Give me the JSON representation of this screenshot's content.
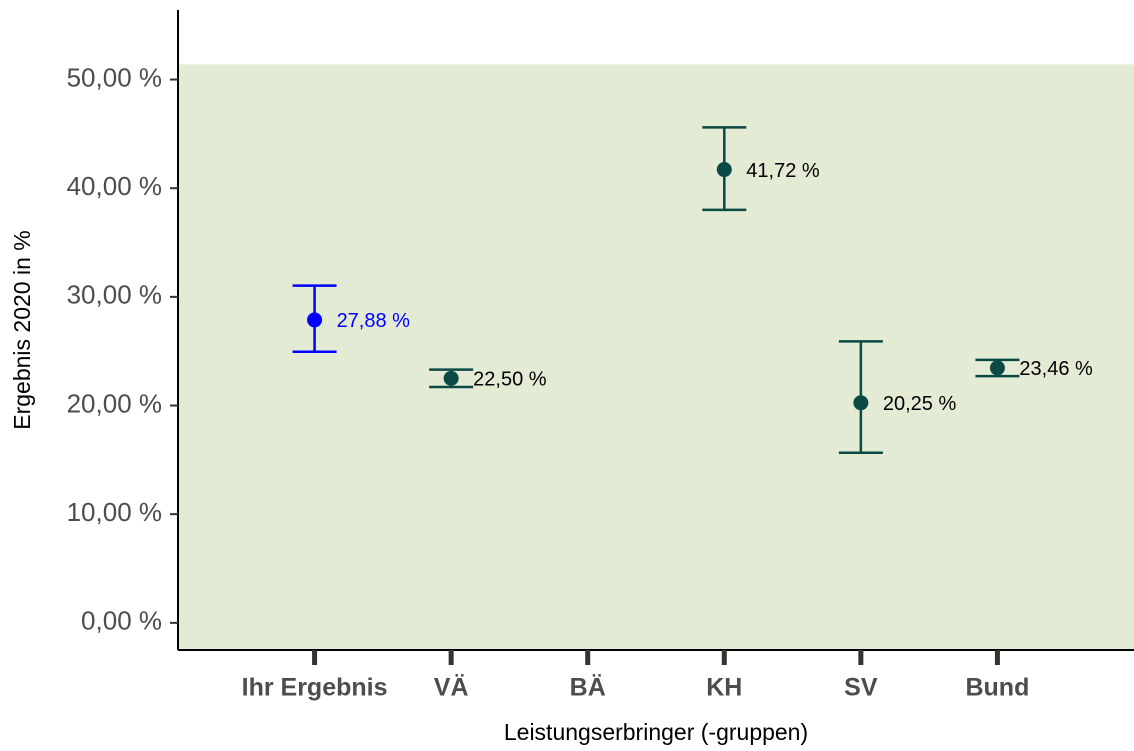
{
  "chart_data": {
    "type": "errorbar",
    "x_label": "Leistungserbringer (-gruppen)",
    "y_label": "Ergebnis 2020 in %",
    "categories": [
      "Ihr Ergebnis",
      "VÄ",
      "BÄ",
      "KH",
      "SV",
      "Bund"
    ],
    "values": [
      27.88,
      22.5,
      null,
      41.72,
      20.25,
      23.46
    ],
    "value_labels": [
      "27,88 %",
      "22,50 %",
      null,
      "41,72 %",
      "20,25 %",
      "23,46 %"
    ],
    "lower": [
      24.95,
      21.7,
      null,
      38.0,
      15.65,
      22.7
    ],
    "upper": [
      31.03,
      23.3,
      null,
      45.6,
      25.9,
      24.2
    ],
    "colors": [
      "#0000ff",
      "#0b4a44",
      "#0b4a44",
      "#0b4a44",
      "#0b4a44",
      "#0b4a44"
    ],
    "reference_range": [
      -2.5,
      51.4
    ],
    "reference_color": "#e3ebd4",
    "ylim": [
      -2.5,
      56.4
    ],
    "yticks": [
      {
        "value": 0,
        "label": "0,00 %"
      },
      {
        "value": 10,
        "label": "10,00 %"
      },
      {
        "value": 20,
        "label": "20,00 %"
      },
      {
        "value": 30,
        "label": "30,00 %"
      },
      {
        "value": 40,
        "label": "40,00 %"
      },
      {
        "value": 50,
        "label": "50,00 %"
      }
    ]
  }
}
